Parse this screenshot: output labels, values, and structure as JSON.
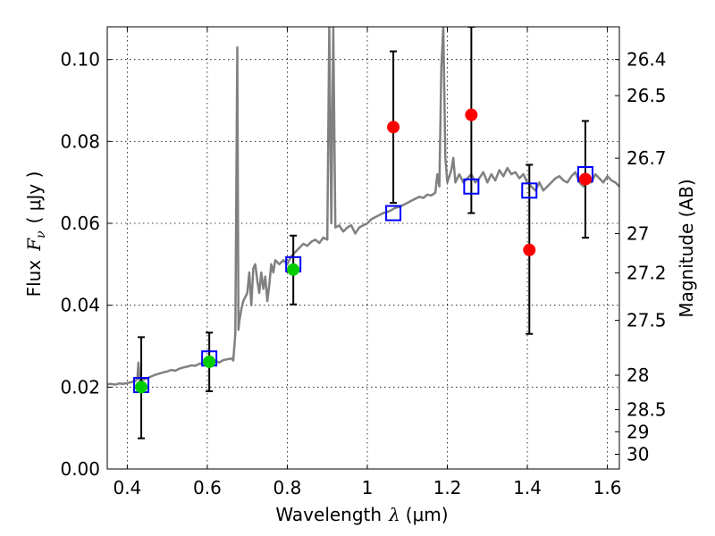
{
  "chart_data": {
    "type": "scatter",
    "xlabel_prefix": "Wavelength",
    "xlabel_sym": "λ",
    "xlabel_unit": "(μm)",
    "ylabel_prefix": "Flux",
    "ylabel_sym": "F",
    "ylabel_sub": "ν",
    "ylabel_unit": "( μJy )",
    "ylabel_right": "Magnitude (AB)",
    "xlim": [
      0.35,
      1.63
    ],
    "ylim": [
      0.0,
      0.108
    ],
    "xticks": [
      0.4,
      0.6,
      0.8,
      1.0,
      1.2,
      1.4,
      1.6
    ],
    "xtick_labels": [
      "0.4",
      "0.6",
      "0.8",
      "1",
      "1.2",
      "1.4",
      "1.6"
    ],
    "yticks": [
      0.0,
      0.02,
      0.04,
      0.06,
      0.08,
      0.1
    ],
    "ytick_labels": [
      "0.00",
      "0.02",
      "0.04",
      "0.06",
      "0.08",
      "0.10"
    ],
    "right_ticks": [
      {
        "label": "26.4",
        "flux": 0.1
      },
      {
        "label": "26.5",
        "flux": 0.0912
      },
      {
        "label": "26.7",
        "flux": 0.0759
      },
      {
        "label": "27",
        "flux": 0.0575
      },
      {
        "label": "27.2",
        "flux": 0.0479
      },
      {
        "label": "27.5",
        "flux": 0.0363
      },
      {
        "label": "28",
        "flux": 0.0229
      },
      {
        "label": "28.5",
        "flux": 0.0145
      },
      {
        "label": "29",
        "flux": 0.0091
      },
      {
        "label": "30",
        "flux": 0.0036
      }
    ],
    "grid": true,
    "series": [
      {
        "name": "model spectrum",
        "kind": "line",
        "color": "#808080",
        "points": [
          [
            0.35,
            0.0207
          ],
          [
            0.36,
            0.0208
          ],
          [
            0.37,
            0.0206
          ],
          [
            0.38,
            0.0209
          ],
          [
            0.39,
            0.0208
          ],
          [
            0.4,
            0.021
          ],
          [
            0.41,
            0.0212
          ],
          [
            0.42,
            0.0215
          ],
          [
            0.425,
            0.022
          ],
          [
            0.428,
            0.026
          ],
          [
            0.431,
            0.0215
          ],
          [
            0.44,
            0.0218
          ],
          [
            0.45,
            0.0222
          ],
          [
            0.46,
            0.0226
          ],
          [
            0.47,
            0.023
          ],
          [
            0.48,
            0.0233
          ],
          [
            0.49,
            0.0236
          ],
          [
            0.5,
            0.0238
          ],
          [
            0.51,
            0.0242
          ],
          [
            0.52,
            0.024
          ],
          [
            0.53,
            0.0245
          ],
          [
            0.54,
            0.0248
          ],
          [
            0.55,
            0.025
          ],
          [
            0.56,
            0.0253
          ],
          [
            0.57,
            0.0252
          ],
          [
            0.58,
            0.0257
          ],
          [
            0.59,
            0.0259
          ],
          [
            0.6,
            0.0261
          ],
          [
            0.61,
            0.0263
          ],
          [
            0.62,
            0.0264
          ],
          [
            0.63,
            0.026
          ],
          [
            0.64,
            0.0266
          ],
          [
            0.65,
            0.0268
          ],
          [
            0.66,
            0.027
          ],
          [
            0.665,
            0.0265
          ],
          [
            0.67,
            0.033
          ],
          [
            0.675,
            0.103
          ],
          [
            0.678,
            0.034
          ],
          [
            0.68,
            0.036
          ],
          [
            0.685,
            0.039
          ],
          [
            0.69,
            0.041
          ],
          [
            0.7,
            0.043
          ],
          [
            0.705,
            0.048
          ],
          [
            0.71,
            0.04
          ],
          [
            0.715,
            0.049
          ],
          [
            0.72,
            0.05
          ],
          [
            0.725,
            0.046
          ],
          [
            0.73,
            0.043
          ],
          [
            0.735,
            0.048
          ],
          [
            0.74,
            0.044
          ],
          [
            0.745,
            0.047
          ],
          [
            0.75,
            0.041
          ],
          [
            0.755,
            0.045
          ],
          [
            0.76,
            0.05
          ],
          [
            0.765,
            0.048
          ],
          [
            0.77,
            0.051
          ],
          [
            0.78,
            0.05
          ],
          [
            0.79,
            0.051
          ],
          [
            0.8,
            0.05
          ],
          [
            0.81,
            0.052
          ],
          [
            0.82,
            0.053
          ],
          [
            0.83,
            0.054
          ],
          [
            0.84,
            0.055
          ],
          [
            0.85,
            0.0545
          ],
          [
            0.86,
            0.0555
          ],
          [
            0.87,
            0.056
          ],
          [
            0.88,
            0.0552
          ],
          [
            0.89,
            0.0565
          ],
          [
            0.9,
            0.056
          ],
          [
            0.905,
            0.108
          ],
          [
            0.91,
            0.06
          ],
          [
            0.915,
            0.108
          ],
          [
            0.92,
            0.059
          ],
          [
            0.93,
            0.0595
          ],
          [
            0.94,
            0.058
          ],
          [
            0.95,
            0.059
          ],
          [
            0.96,
            0.0595
          ],
          [
            0.97,
            0.0575
          ],
          [
            0.98,
            0.059
          ],
          [
            0.99,
            0.0595
          ],
          [
            1.0,
            0.06
          ],
          [
            1.01,
            0.061
          ],
          [
            1.02,
            0.0615
          ],
          [
            1.03,
            0.062
          ],
          [
            1.04,
            0.0625
          ],
          [
            1.05,
            0.0628
          ],
          [
            1.06,
            0.0632
          ],
          [
            1.07,
            0.0638
          ],
          [
            1.08,
            0.064
          ],
          [
            1.09,
            0.0645
          ],
          [
            1.1,
            0.065
          ],
          [
            1.11,
            0.0655
          ],
          [
            1.12,
            0.066
          ],
          [
            1.13,
            0.0665
          ],
          [
            1.14,
            0.0662
          ],
          [
            1.15,
            0.067
          ],
          [
            1.16,
            0.0668
          ],
          [
            1.17,
            0.0675
          ],
          [
            1.175,
            0.072
          ],
          [
            1.18,
            0.069
          ],
          [
            1.185,
            0.098
          ],
          [
            1.19,
            0.108
          ],
          [
            1.195,
            0.076
          ],
          [
            1.2,
            0.07
          ],
          [
            1.21,
            0.073
          ],
          [
            1.215,
            0.076
          ],
          [
            1.22,
            0.07
          ],
          [
            1.23,
            0.072
          ],
          [
            1.24,
            0.07
          ],
          [
            1.25,
            0.071
          ],
          [
            1.26,
            0.072
          ],
          [
            1.27,
            0.07
          ],
          [
            1.28,
            0.071
          ],
          [
            1.29,
            0.0725
          ],
          [
            1.3,
            0.07
          ],
          [
            1.31,
            0.072
          ],
          [
            1.32,
            0.0705
          ],
          [
            1.33,
            0.073
          ],
          [
            1.34,
            0.0715
          ],
          [
            1.35,
            0.0735
          ],
          [
            1.36,
            0.072
          ],
          [
            1.37,
            0.0725
          ],
          [
            1.38,
            0.071
          ],
          [
            1.39,
            0.072
          ],
          [
            1.4,
            0.07
          ],
          [
            1.41,
            0.069
          ],
          [
            1.42,
            0.068
          ],
          [
            1.43,
            0.07
          ],
          [
            1.44,
            0.068
          ],
          [
            1.45,
            0.069
          ],
          [
            1.46,
            0.07
          ],
          [
            1.47,
            0.071
          ],
          [
            1.48,
            0.0715
          ],
          [
            1.49,
            0.0705
          ],
          [
            1.5,
            0.07
          ],
          [
            1.51,
            0.0715
          ],
          [
            1.52,
            0.0725
          ],
          [
            1.53,
            0.07
          ],
          [
            1.54,
            0.069
          ],
          [
            1.55,
            0.071
          ],
          [
            1.56,
            0.07
          ],
          [
            1.57,
            0.072
          ],
          [
            1.58,
            0.071
          ],
          [
            1.59,
            0.07
          ],
          [
            1.6,
            0.0715
          ],
          [
            1.61,
            0.0705
          ],
          [
            1.62,
            0.07
          ],
          [
            1.63,
            0.069
          ]
        ]
      },
      {
        "name": "model photometry",
        "kind": "square",
        "color": "#0000ff",
        "points": [
          [
            0.435,
            0.0205
          ],
          [
            0.605,
            0.027
          ],
          [
            0.815,
            0.05
          ],
          [
            1.065,
            0.0625
          ],
          [
            1.26,
            0.069
          ],
          [
            1.405,
            0.068
          ],
          [
            1.545,
            0.072
          ]
        ]
      },
      {
        "name": "detections",
        "kind": "circle",
        "color": "#00cc00",
        "points": [
          [
            0.435,
            0.02
          ],
          [
            0.605,
            0.0262
          ],
          [
            0.815,
            0.0487
          ]
        ]
      },
      {
        "name": "upper limits",
        "kind": "circle",
        "color": "#ff0000",
        "points": [
          [
            1.065,
            0.0835
          ],
          [
            1.26,
            0.0865
          ],
          [
            1.405,
            0.0535
          ],
          [
            1.545,
            0.0708
          ]
        ]
      },
      {
        "name": "error bars",
        "kind": "errorbar",
        "color": "#000000",
        "bars": [
          {
            "x": 0.435,
            "lo": 0.0075,
            "hi": 0.0322
          },
          {
            "x": 0.605,
            "lo": 0.019,
            "hi": 0.0333
          },
          {
            "x": 0.815,
            "lo": 0.0402,
            "hi": 0.057
          },
          {
            "x": 1.065,
            "lo": 0.065,
            "hi": 0.102
          },
          {
            "x": 1.26,
            "lo": 0.0625,
            "hi": 0.108
          },
          {
            "x": 1.405,
            "lo": 0.033,
            "hi": 0.0743
          },
          {
            "x": 1.545,
            "lo": 0.0565,
            "hi": 0.085
          }
        ]
      }
    ]
  }
}
